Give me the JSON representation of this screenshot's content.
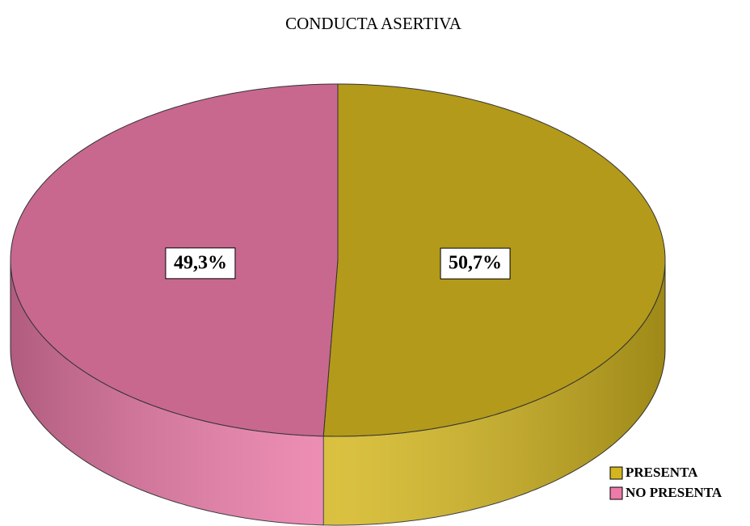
{
  "chart_data": {
    "type": "pie",
    "title": "CONDUCTA ASERTIVA",
    "categories": [
      "PRESENTA",
      "NO PRESENTA"
    ],
    "values": [
      50.7,
      49.3
    ],
    "value_labels": [
      "50,7%",
      "49,3%"
    ],
    "colors": [
      "#b39a1a",
      "#c8688f"
    ],
    "legend": "bottom-right"
  }
}
